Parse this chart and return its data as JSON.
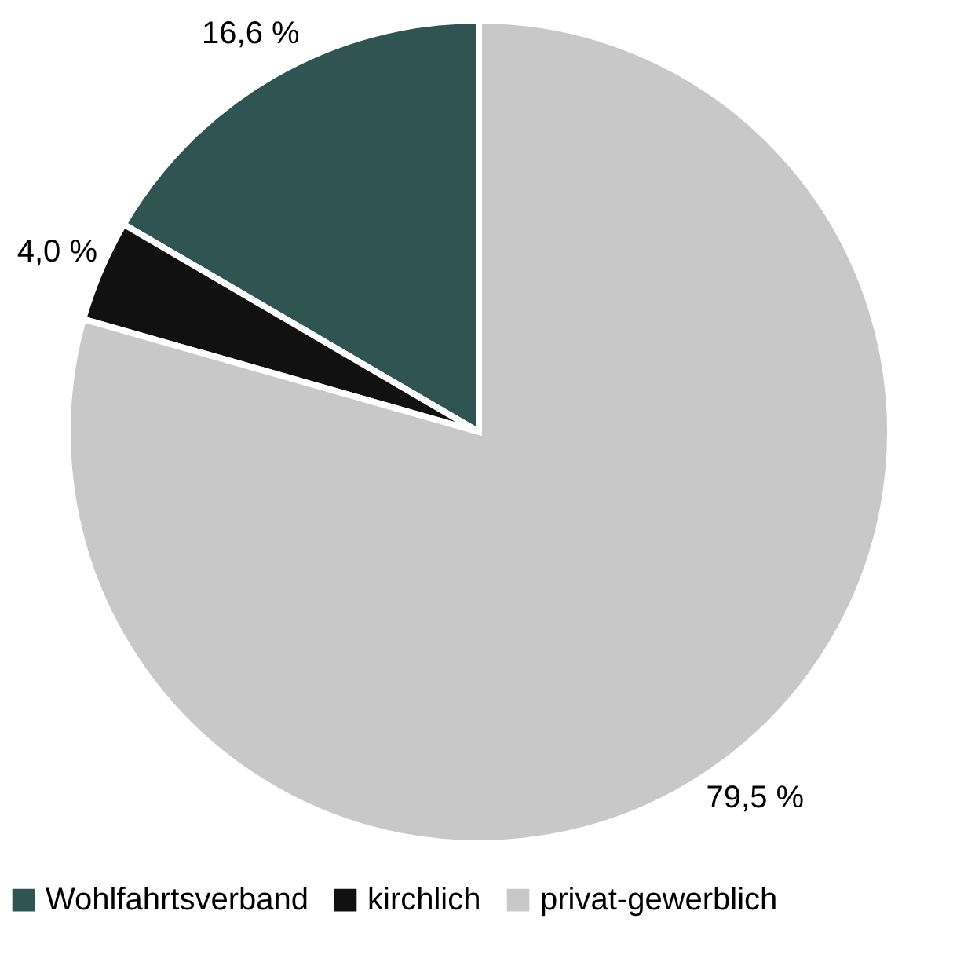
{
  "chart_data": {
    "type": "pie",
    "categories": [
      "Wohlfahrtsverband",
      "kirchlich",
      "privat-gewerblich"
    ],
    "values": [
      16.6,
      4.0,
      79.5
    ],
    "value_labels": [
      "16,6 %",
      "4,0 %",
      "79,5 %"
    ],
    "colors": [
      "#2f5451",
      "#111111",
      "#c8c8c8"
    ],
    "legend": "bottom"
  }
}
